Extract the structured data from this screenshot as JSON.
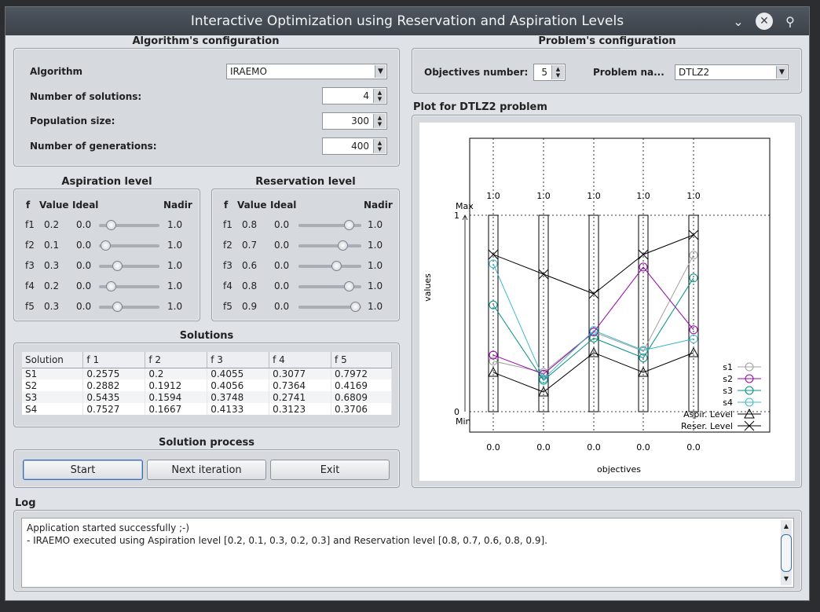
{
  "window": {
    "title": "Interactive Optimization using Reservation and Aspiration Levels"
  },
  "algorithm_config": {
    "title": "Algorithm's configuration",
    "algorithm_label": "Algorithm",
    "algorithm_value": "IRAEMO",
    "num_solutions_label": "Number of solutions:",
    "num_solutions": "4",
    "population_label": "Population size:",
    "population": "300",
    "generations_label": "Number of generations:",
    "generations": "400"
  },
  "problem_config": {
    "title": "Problem's configuration",
    "objectives_label": "Objectives number:",
    "objectives": "5",
    "problem_label": "Problem na...",
    "problem_value": "DTLZ2"
  },
  "aspiration": {
    "title": "Aspiration level",
    "headers": {
      "f": "f",
      "value": "Value",
      "ideal": "Ideal",
      "nadir": "Nadir"
    },
    "rows": [
      {
        "f": "f1",
        "value": "0.2",
        "ideal": "0.0",
        "nadir": "1.0",
        "level": 0.2
      },
      {
        "f": "f2",
        "value": "0.1",
        "ideal": "0.0",
        "nadir": "1.0",
        "level": 0.1
      },
      {
        "f": "f3",
        "value": "0.3",
        "ideal": "0.0",
        "nadir": "1.0",
        "level": 0.3
      },
      {
        "f": "f4",
        "value": "0.2",
        "ideal": "0.0",
        "nadir": "1.0",
        "level": 0.2
      },
      {
        "f": "f5",
        "value": "0.3",
        "ideal": "0.0",
        "nadir": "1.0",
        "level": 0.3
      }
    ]
  },
  "reservation": {
    "title": "Reservation level",
    "headers": {
      "f": "f",
      "value": "Value",
      "ideal": "Ideal",
      "nadir": "Nadir"
    },
    "rows": [
      {
        "f": "f1",
        "value": "0.8",
        "ideal": "0.0",
        "nadir": "1.0",
        "level": 0.8
      },
      {
        "f": "f2",
        "value": "0.7",
        "ideal": "0.0",
        "nadir": "1.0",
        "level": 0.7
      },
      {
        "f": "f3",
        "value": "0.6",
        "ideal": "0.0",
        "nadir": "1.0",
        "level": 0.6
      },
      {
        "f": "f4",
        "value": "0.8",
        "ideal": "0.0",
        "nadir": "1.0",
        "level": 0.8
      },
      {
        "f": "f5",
        "value": "0.9",
        "ideal": "0.0",
        "nadir": "1.0",
        "level": 0.9
      }
    ]
  },
  "solutions": {
    "title": "Solutions",
    "columns": [
      "Solution",
      "f 1",
      "f 2",
      "f 3",
      "f 4",
      "f 5"
    ],
    "rows": [
      [
        "S1",
        "0.2575",
        "0.2",
        "0.4055",
        "0.3077",
        "0.7972"
      ],
      [
        "S2",
        "0.2882",
        "0.1912",
        "0.4056",
        "0.7364",
        "0.4169"
      ],
      [
        "S3",
        "0.5435",
        "0.1594",
        "0.3748",
        "0.2741",
        "0.6809"
      ],
      [
        "S4",
        "0.7527",
        "0.1667",
        "0.4133",
        "0.3123",
        "0.3706"
      ]
    ]
  },
  "process": {
    "title": "Solution process",
    "start": "Start",
    "next": "Next iteration",
    "exit": "Exit"
  },
  "plot": {
    "title": "Plot for DTLZ2 problem",
    "chart_data": {
      "type": "line",
      "x": [
        1,
        2,
        3,
        4,
        5
      ],
      "top_tick_labels": [
        "1.0",
        "1.0",
        "1.0",
        "1.0",
        "1.0"
      ],
      "bottom_tick_labels": [
        "0.0",
        "0.0",
        "0.0",
        "0.0",
        "0.0"
      ],
      "ylabel": "values",
      "xlabel": "objectives",
      "ymax_label": "Max",
      "ymin_label": "Min",
      "ytick_top": "1",
      "ytick_bottom": "0",
      "ylim": [
        0,
        1
      ],
      "series": [
        {
          "name": "s1",
          "color": "#a0a0a0",
          "marker": "circle",
          "values": [
            0.2575,
            0.2,
            0.4055,
            0.3077,
            0.7972
          ]
        },
        {
          "name": "s2",
          "color": "#9400a8",
          "marker": "circle",
          "values": [
            0.2882,
            0.1912,
            0.4056,
            0.7364,
            0.4169
          ]
        },
        {
          "name": "s3",
          "color": "#00907f",
          "marker": "circle",
          "values": [
            0.5435,
            0.1594,
            0.3748,
            0.2741,
            0.6809
          ]
        },
        {
          "name": "s4",
          "color": "#3fb8c8",
          "marker": "circle",
          "values": [
            0.7527,
            0.1667,
            0.4133,
            0.3123,
            0.3706
          ]
        },
        {
          "name": "Aspir. Level",
          "color": "#000000",
          "marker": "triangle",
          "values": [
            0.2,
            0.1,
            0.3,
            0.2,
            0.3
          ]
        },
        {
          "name": "Reser. Level",
          "color": "#000000",
          "marker": "cross",
          "values": [
            0.8,
            0.7,
            0.6,
            0.8,
            0.9
          ]
        }
      ],
      "legend": "bottom-right"
    }
  },
  "log": {
    "title": "Log",
    "lines": [
      "Application started successfully ;-)",
      "- IRAEMO executed using Aspiration level [0.2, 0.1, 0.3, 0.2, 0.3] and Reservation level [0.8, 0.7, 0.6, 0.8, 0.9]."
    ]
  }
}
